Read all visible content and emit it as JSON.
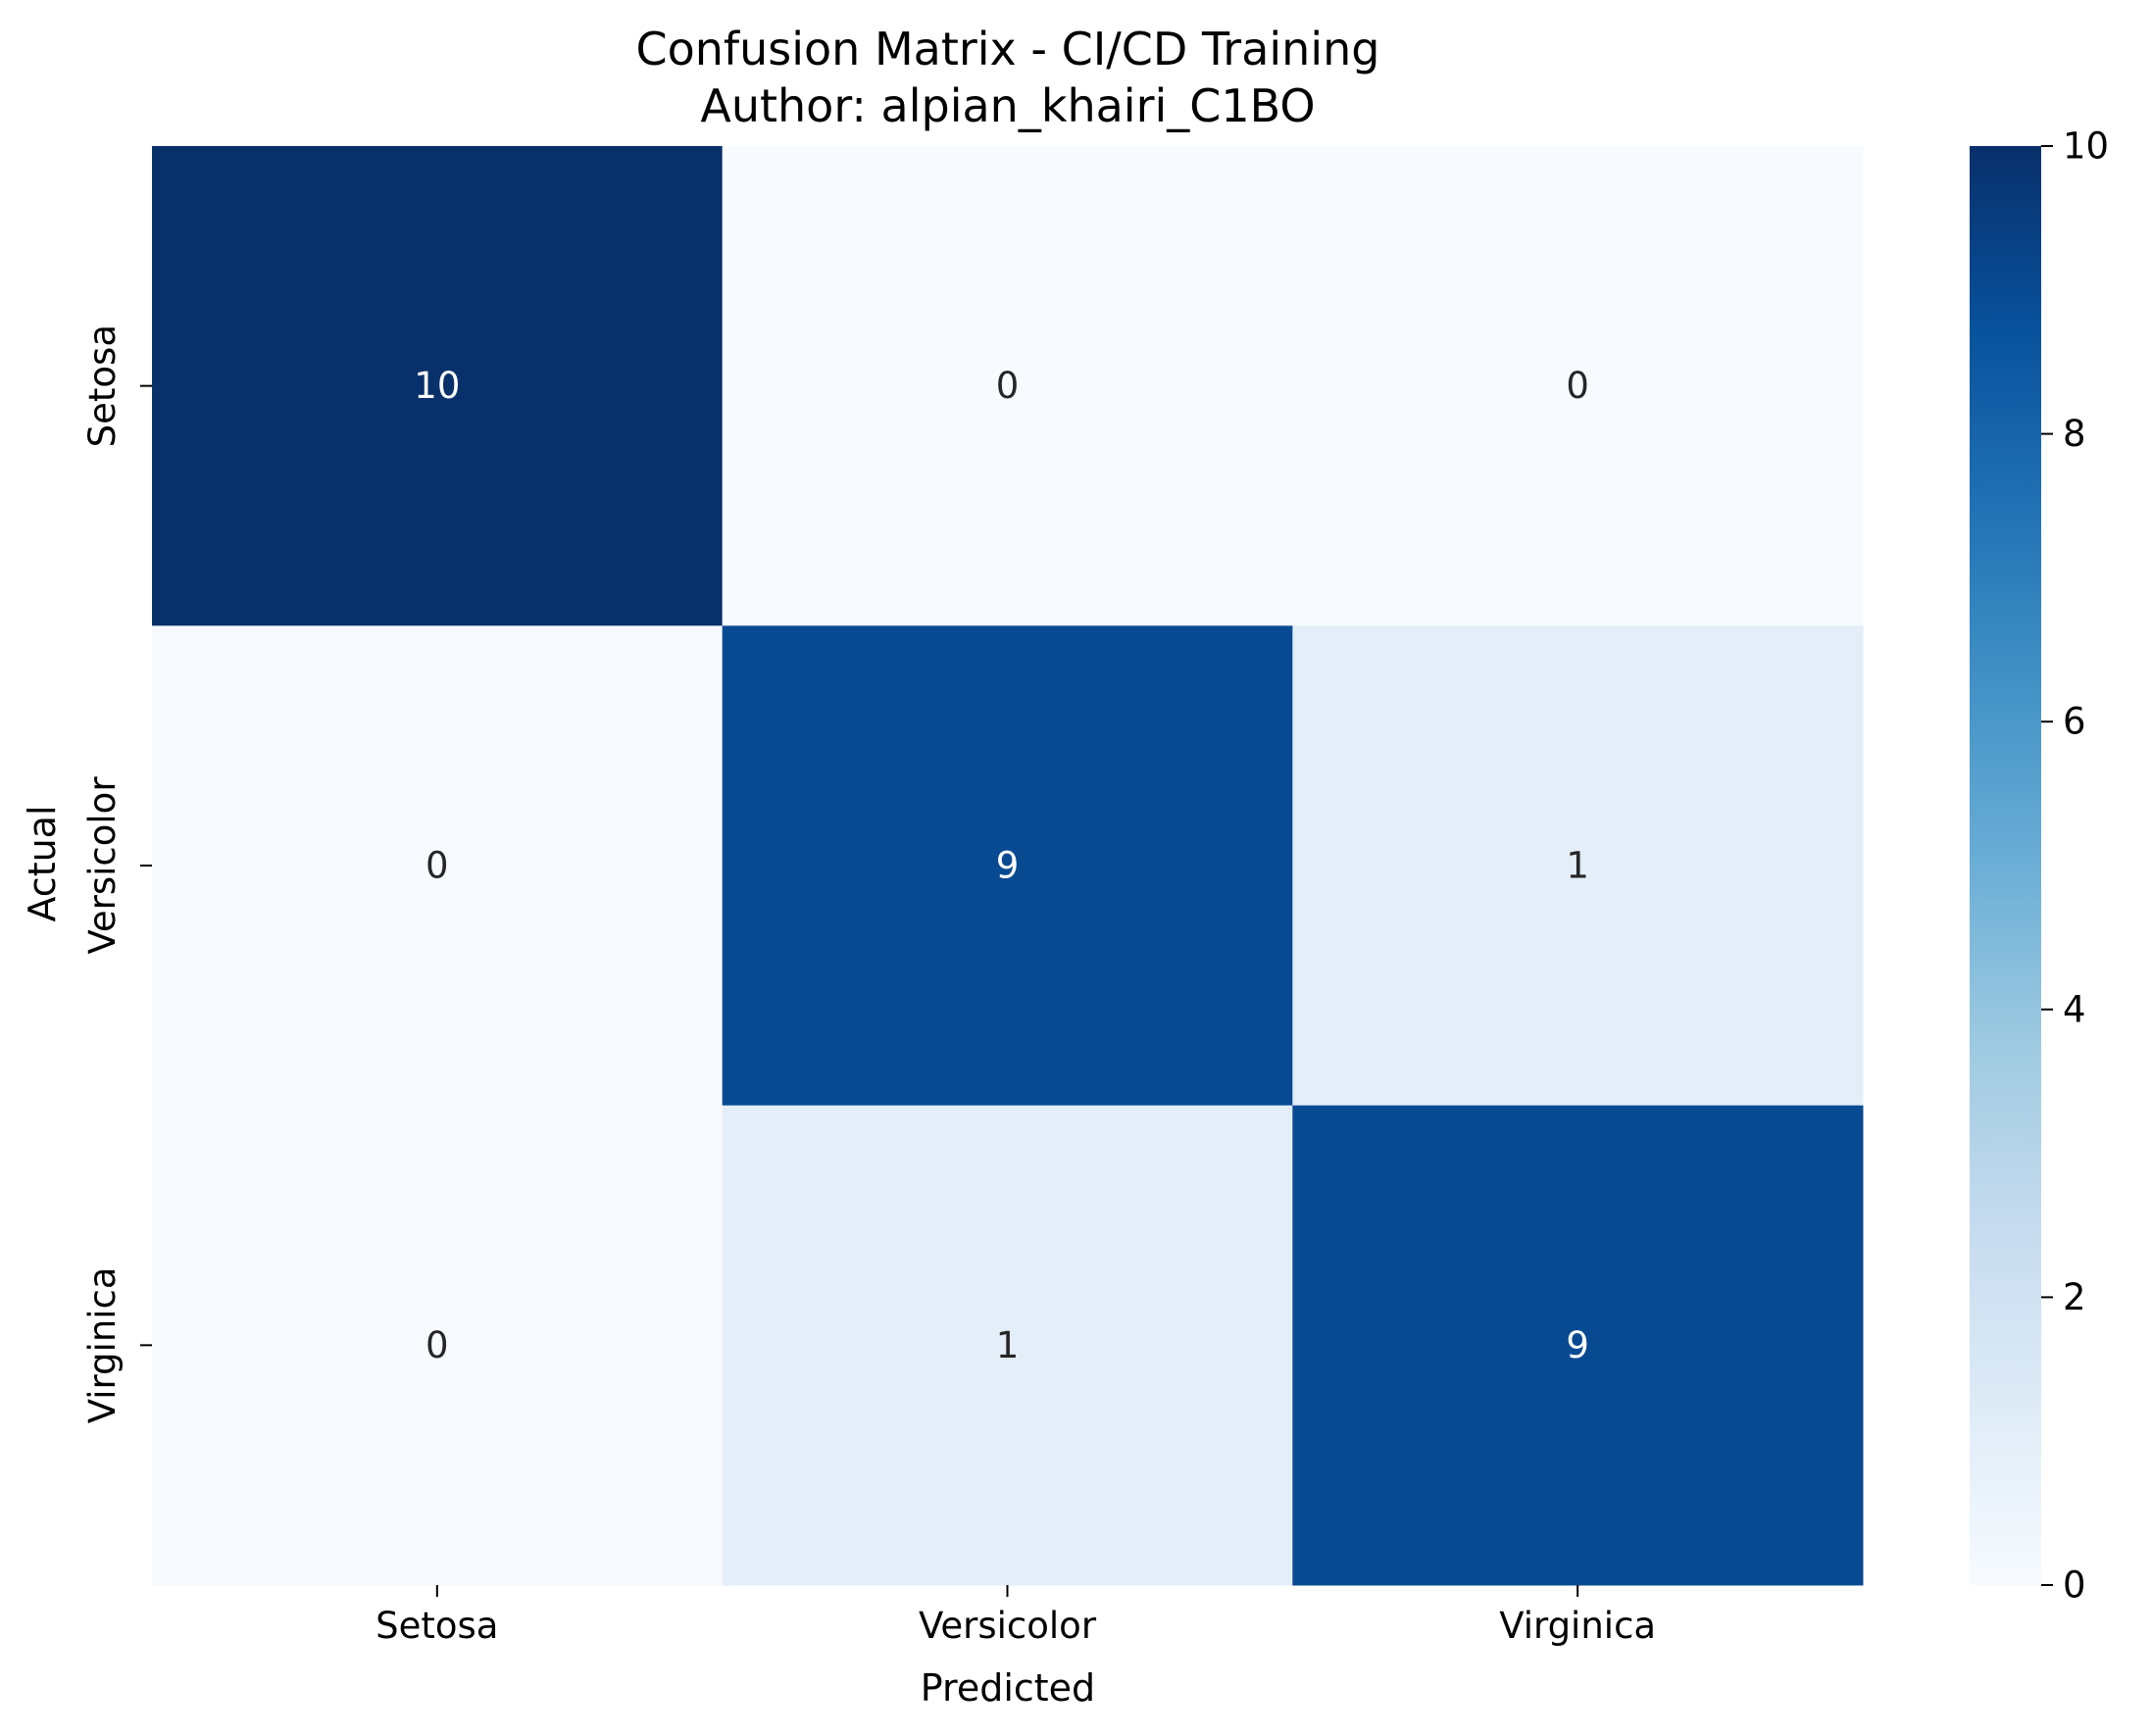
{
  "chart_data": {
    "type": "heatmap",
    "title": "Confusion Matrix - CI/CD Training",
    "subtitle": "Author: alpian_khairi_C1BO",
    "xlabel": "Predicted",
    "ylabel": "Actual",
    "x_categories": [
      "Setosa",
      "Versicolor",
      "Virginica"
    ],
    "y_categories": [
      "Setosa",
      "Versicolor",
      "Virginica"
    ],
    "values": [
      [
        10,
        0,
        0
      ],
      [
        0,
        9,
        1
      ],
      [
        0,
        1,
        9
      ]
    ],
    "colorbar": {
      "range": [
        0,
        10
      ],
      "ticks": [
        0,
        2,
        4,
        6,
        8,
        10
      ],
      "colormap": "Blues"
    },
    "annotation_colors": {
      "light": "#ffffff",
      "dark": "#262626"
    }
  }
}
